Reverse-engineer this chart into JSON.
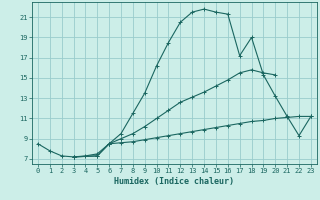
{
  "bg_color": "#cceee8",
  "grid_color": "#99cccc",
  "line_color": "#1a6660",
  "xlabel": "Humidex (Indice chaleur)",
  "xlim": [
    -0.5,
    23.5
  ],
  "ylim": [
    6.5,
    22.5
  ],
  "xticks": [
    0,
    1,
    2,
    3,
    4,
    5,
    6,
    7,
    8,
    9,
    10,
    11,
    12,
    13,
    14,
    15,
    16,
    17,
    18,
    19,
    20,
    21,
    22,
    23
  ],
  "yticks": [
    7,
    9,
    11,
    13,
    15,
    17,
    19,
    21
  ],
  "line1_x": [
    0,
    1,
    2,
    3,
    4,
    5,
    6,
    7,
    8,
    9,
    10,
    11,
    12,
    13,
    14,
    15,
    16,
    17,
    18,
    19,
    20,
    21,
    22,
    23
  ],
  "line1_y": [
    8.5,
    7.8,
    7.3,
    7.2,
    7.3,
    7.5,
    8.5,
    9.5,
    11.5,
    13.5,
    16.2,
    18.5,
    20.5,
    21.5,
    21.8,
    21.5,
    21.3,
    17.2,
    19.0,
    15.3,
    13.2,
    11.2,
    9.3,
    11.2
  ],
  "line2_x": [
    3,
    5,
    6,
    7,
    8,
    9,
    10,
    11,
    12,
    13,
    14,
    15,
    16,
    17,
    18,
    19,
    20,
    21,
    22,
    23
  ],
  "line2_y": [
    7.2,
    7.3,
    8.5,
    8.6,
    8.7,
    8.9,
    9.1,
    9.3,
    9.5,
    9.7,
    9.9,
    10.1,
    10.3,
    10.5,
    10.7,
    10.8,
    11.0,
    11.1,
    11.2,
    11.2
  ],
  "line3_x": [
    3,
    5,
    6,
    7,
    8,
    9,
    10,
    11,
    12,
    13,
    14,
    15,
    16,
    17,
    18,
    19,
    20
  ],
  "line3_y": [
    7.2,
    7.3,
    8.5,
    9.0,
    9.5,
    10.2,
    11.0,
    11.8,
    12.6,
    13.1,
    13.6,
    14.2,
    14.8,
    15.5,
    15.8,
    15.5,
    15.3
  ],
  "marker": "+",
  "markersize": 3,
  "linewidth": 0.8,
  "tick_fontsize": 5,
  "xlabel_fontsize": 6,
  "tick_color": "#1a6660"
}
